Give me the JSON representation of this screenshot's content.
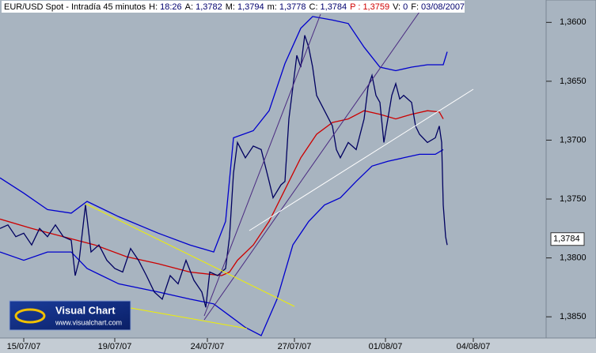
{
  "header": {
    "title": "EUR/USD Spot - Intradía 45 minutos",
    "fields": [
      {
        "label": "H:",
        "value": "18:26",
        "color": "#00006e"
      },
      {
        "label": "A:",
        "value": "1,3782",
        "color": "#00006e"
      },
      {
        "label": "M:",
        "value": "1,3794",
        "color": "#00006e"
      },
      {
        "label": "m:",
        "value": "1,3778",
        "color": "#00006e"
      },
      {
        "label": "C:",
        "value": "1,3784",
        "color": "#00006e"
      },
      {
        "label": "P :",
        "value": "1,3759",
        "color": "#d00000"
      },
      {
        "label": "V:",
        "value": "0",
        "color": "#00006e"
      },
      {
        "label": "F:",
        "value": "03/08/2007",
        "color": "#00006e"
      }
    ]
  },
  "logo": {
    "name": "Visual Chart",
    "url": "www.visualchart.com"
  },
  "chart_data": {
    "type": "line",
    "xlim": [
      0,
      690
    ],
    "xticks": [
      {
        "value": 30,
        "label": "15/07/07"
      },
      {
        "value": 145,
        "label": "19/07/07"
      },
      {
        "value": 262,
        "label": "24/07/07"
      },
      {
        "value": 372,
        "label": "27/07/07"
      },
      {
        "value": 487,
        "label": "01/08/07"
      },
      {
        "value": 598,
        "label": "04/08/07"
      }
    ],
    "ylim": [
      1.3581,
      1.3868
    ],
    "y_inverted": true,
    "yticks": [
      {
        "value": 1.36,
        "label": "1,3600"
      },
      {
        "value": 1.365,
        "label": "1,3650"
      },
      {
        "value": 1.37,
        "label": "1,3700"
      },
      {
        "value": 1.375,
        "label": "1,3750"
      },
      {
        "value": 1.38,
        "label": "1,3800"
      },
      {
        "value": 1.385,
        "label": "1,3850"
      }
    ],
    "last_price": {
      "value": 1.3784,
      "label": "1,3784"
    },
    "series": [
      {
        "color": "#0000cd",
        "x": [
          0,
          30,
          60,
          90,
          110,
          150,
          200,
          240,
          270,
          285,
          295,
          320,
          340,
          360,
          380,
          395,
          420,
          440,
          460,
          480,
          500,
          520,
          540,
          560,
          565
        ],
        "values": [
          1.3732,
          1.3745,
          1.3759,
          1.3762,
          1.3752,
          1.3765,
          1.3779,
          1.3789,
          1.3795,
          1.3769,
          1.3698,
          1.3692,
          1.3675,
          1.3635,
          1.3605,
          1.3595,
          1.3598,
          1.3601,
          1.3621,
          1.3638,
          1.3641,
          1.3638,
          1.3636,
          1.3636,
          1.3625
        ]
      },
      {
        "color": "#0000cd",
        "x": [
          0,
          30,
          60,
          90,
          110,
          150,
          200,
          240,
          270,
          290,
          310,
          330,
          350,
          370,
          390,
          410,
          430,
          450,
          470,
          490,
          510,
          530,
          550,
          560
        ],
        "values": [
          1.3795,
          1.3802,
          1.3795,
          1.3795,
          1.3809,
          1.3822,
          1.3829,
          1.3835,
          1.3839,
          1.3849,
          1.3859,
          1.3866,
          1.3835,
          1.3789,
          1.3769,
          1.3755,
          1.3749,
          1.3735,
          1.3722,
          1.3718,
          1.3715,
          1.3712,
          1.3712,
          1.3708
        ]
      },
      {
        "color": "#cc0000",
        "x": [
          0,
          40,
          80,
          120,
          160,
          200,
          240,
          280,
          290,
          300,
          320,
          340,
          360,
          380,
          400,
          420,
          440,
          460,
          480,
          500,
          520,
          540,
          555,
          560
        ],
        "values": [
          1.3767,
          1.3775,
          1.3782,
          1.3789,
          1.3799,
          1.3805,
          1.3812,
          1.3815,
          1.3812,
          1.3802,
          1.3789,
          1.3769,
          1.3742,
          1.3715,
          1.3695,
          1.3685,
          1.3682,
          1.3675,
          1.3678,
          1.3682,
          1.3678,
          1.3675,
          1.3676,
          1.3682
        ]
      },
      {
        "color": "#000060",
        "x": [
          0,
          10,
          20,
          30,
          40,
          50,
          60,
          70,
          80,
          90,
          95,
          100,
          108,
          115,
          125,
          135,
          145,
          155,
          165,
          175,
          185,
          195,
          205,
          215,
          225,
          235,
          245,
          255,
          260,
          265,
          275,
          285,
          290,
          295,
          300,
          310,
          320,
          330,
          340,
          345,
          355,
          360,
          365,
          370,
          375,
          380,
          385,
          390,
          395,
          400,
          410,
          420,
          425,
          430,
          440,
          450,
          460,
          465,
          470,
          475,
          480,
          485,
          490,
          495,
          500,
          505,
          510,
          520,
          525,
          530,
          540,
          550,
          555,
          558,
          560,
          563,
          565
        ],
        "values": [
          1.3775,
          1.3772,
          1.3782,
          1.3779,
          1.3789,
          1.3775,
          1.3782,
          1.3772,
          1.3782,
          1.3785,
          1.3815,
          1.3802,
          1.3755,
          1.3795,
          1.3789,
          1.3802,
          1.3809,
          1.3812,
          1.3792,
          1.3802,
          1.3815,
          1.3829,
          1.3835,
          1.3815,
          1.3822,
          1.3802,
          1.3819,
          1.3829,
          1.3842,
          1.3812,
          1.3815,
          1.3809,
          1.3782,
          1.3728,
          1.3702,
          1.3715,
          1.3705,
          1.3708,
          1.3735,
          1.3749,
          1.3738,
          1.3735,
          1.3682,
          1.3655,
          1.3628,
          1.3638,
          1.3611,
          1.3621,
          1.3638,
          1.3662,
          1.3675,
          1.3688,
          1.3708,
          1.3715,
          1.3702,
          1.3708,
          1.3682,
          1.3655,
          1.3645,
          1.3662,
          1.3668,
          1.3702,
          1.3682,
          1.3662,
          1.3652,
          1.3665,
          1.3662,
          1.3668,
          1.3688,
          1.3695,
          1.3702,
          1.3698,
          1.3688,
          1.3702,
          1.3755,
          1.3782,
          1.3789
        ]
      }
    ]
  }
}
